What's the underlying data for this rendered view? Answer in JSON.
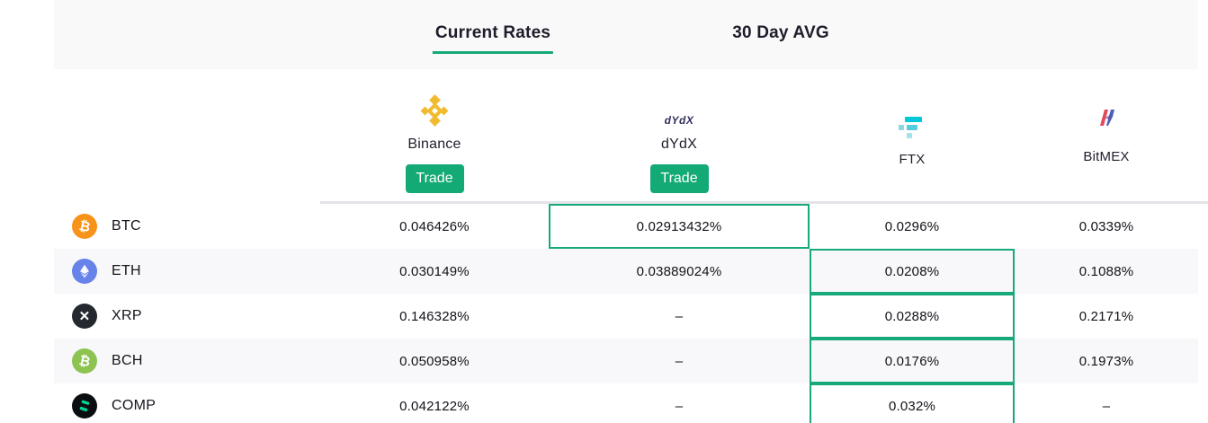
{
  "tabs": {
    "current": {
      "label": "Current Rates",
      "active": true
    },
    "avg": {
      "label": "30 Day AVG",
      "active": false
    }
  },
  "colors": {
    "accent_green": "#16a87a",
    "trade_button": "#14aa75",
    "highlight_border": "#17a97b",
    "row_alt_bg": "#f8f8fa",
    "topbar_bg": "#f9f9f9",
    "binance_gold": "#f1bb31",
    "ftx_teal": "#02c7d9",
    "bitmex_red": "#e4485c",
    "bitmex_blue": "#4e5ec0"
  },
  "exchanges": [
    {
      "name": "Binance",
      "trade_label": "Trade",
      "has_trade": true
    },
    {
      "name": "dYdX",
      "logo_text": "dYdX",
      "trade_label": "Trade",
      "has_trade": true
    },
    {
      "name": "FTX",
      "has_trade": false
    },
    {
      "name": "BitMEX",
      "has_trade": false
    }
  ],
  "rows": [
    {
      "coin": "BTC",
      "icon": {
        "type": "glyph",
        "glyph": "₿",
        "bg": "#F7931A",
        "tilt": true
      },
      "rates": [
        {
          "value": "0.046426%",
          "highlight": false
        },
        {
          "value": "0.02913432%",
          "highlight": true
        },
        {
          "value": "0.0296%",
          "highlight": false
        },
        {
          "value": "0.0339%",
          "highlight": false
        }
      ]
    },
    {
      "coin": "ETH",
      "icon": {
        "type": "eth",
        "bg": "#6782E9"
      },
      "rates": [
        {
          "value": "0.030149%",
          "highlight": false
        },
        {
          "value": "0.03889024%",
          "highlight": false
        },
        {
          "value": "0.0208%",
          "highlight": true
        },
        {
          "value": "0.1088%",
          "highlight": false
        }
      ]
    },
    {
      "coin": "XRP",
      "icon": {
        "type": "glyph",
        "glyph": "✕",
        "bg": "#23292F",
        "tilt": false
      },
      "rates": [
        {
          "value": "0.146328%",
          "highlight": false
        },
        {
          "value": "–",
          "highlight": false
        },
        {
          "value": "0.0288%",
          "highlight": true
        },
        {
          "value": "0.2171%",
          "highlight": false
        }
      ]
    },
    {
      "coin": "BCH",
      "icon": {
        "type": "glyph",
        "glyph": "₿",
        "bg": "#8DC351",
        "tilt": true
      },
      "rates": [
        {
          "value": "0.050958%",
          "highlight": false
        },
        {
          "value": "–",
          "highlight": false
        },
        {
          "value": "0.0176%",
          "highlight": true
        },
        {
          "value": "0.1973%",
          "highlight": false
        }
      ]
    },
    {
      "coin": "COMP",
      "icon": {
        "type": "comp",
        "bg": "#0B0E11"
      },
      "rates": [
        {
          "value": "0.042122%",
          "highlight": false
        },
        {
          "value": "–",
          "highlight": false
        },
        {
          "value": "0.032%",
          "highlight": true
        },
        {
          "value": "–",
          "highlight": false
        }
      ]
    }
  ]
}
